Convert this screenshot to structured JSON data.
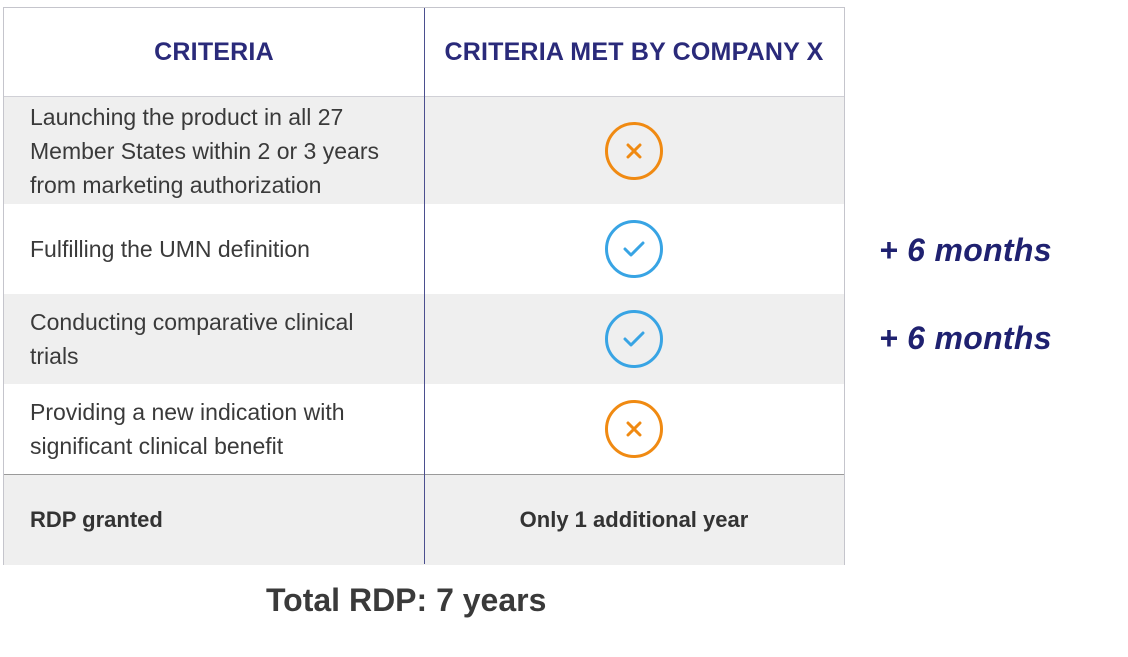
{
  "table": {
    "header": {
      "criteria": "CRITERIA",
      "met": "CRITERIA MET BY COMPANY X"
    },
    "rows": [
      {
        "criterion": "Launching the product in all 27 Member States within 2 or 3 years from marketing authorization",
        "status": "not-met",
        "icon": "cross-circle-icon"
      },
      {
        "criterion": "Fulfilling the UMN definition",
        "status": "met",
        "icon": "check-circle-icon"
      },
      {
        "criterion": "Conducting comparative clinical trials",
        "status": "met",
        "icon": "check-circle-icon"
      },
      {
        "criterion": "Providing a new indication with significant clinical benefit",
        "status": "not-met",
        "icon": "cross-circle-icon"
      }
    ],
    "footer": {
      "label": "RDP granted",
      "value": "Only 1 additional year"
    }
  },
  "side_notes": [
    "+ 6 months",
    "+ 6 months"
  ],
  "total": "Total RDP: 7 years",
  "colors": {
    "header_text": "#2a2a7a",
    "cross": "#f08a12",
    "check": "#38a4e4",
    "side_note": "#1f2170",
    "row_shade": "#efefef"
  }
}
